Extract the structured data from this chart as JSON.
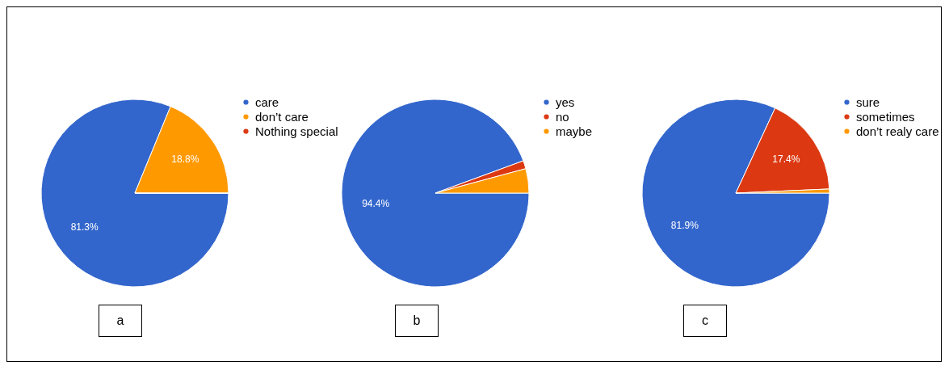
{
  "chart_data": [
    {
      "type": "pie",
      "categories": [
        "care",
        "don’t care",
        "Nothing special"
      ],
      "values": [
        81.3,
        18.8,
        0
      ],
      "colors": [
        "#3366cc",
        "#ff9900",
        "#dc3912"
      ],
      "value_labels": [
        "81.3%",
        "18.8%",
        null
      ],
      "legend": "right",
      "annotations": [
        "a"
      ]
    },
    {
      "type": "pie",
      "categories": [
        "yes",
        "no",
        "maybe"
      ],
      "values": [
        94.4,
        1.4,
        4.2
      ],
      "colors": [
        "#3366cc",
        "#dc3912",
        "#ff9900"
      ],
      "value_labels": [
        "94.4%",
        null,
        null
      ],
      "legend": "right",
      "annotations": [
        "b"
      ]
    },
    {
      "type": "pie",
      "categories": [
        "sure",
        "sometimes",
        "don’t realy care"
      ],
      "values": [
        81.9,
        17.4,
        0.7
      ],
      "colors": [
        "#3366cc",
        "#dc3912",
        "#ff9900"
      ],
      "value_labels": [
        "81.9%",
        "17.4%",
        null
      ],
      "legend": "right",
      "annotations": [
        "c"
      ]
    }
  ]
}
